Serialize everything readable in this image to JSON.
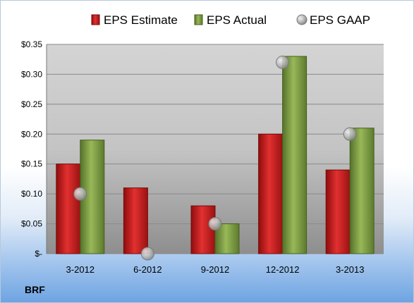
{
  "ticker": "BRF",
  "chart_data": {
    "type": "bar",
    "categories": [
      "3-2012",
      "6-2012",
      "9-2012",
      "12-2012",
      "3-2013"
    ],
    "series": [
      {
        "name": "EPS Estimate",
        "kind": "bar",
        "color": "#cc1f1f",
        "values": [
          0.15,
          0.11,
          0.08,
          0.2,
          0.14
        ]
      },
      {
        "name": "EPS Actual",
        "kind": "bar",
        "color": "#7a9a3a",
        "values": [
          0.19,
          null,
          0.05,
          0.33,
          0.21
        ]
      },
      {
        "name": "EPS GAAP",
        "kind": "marker",
        "color": "#b0b0b0",
        "values": [
          0.1,
          0.0,
          0.05,
          0.32,
          0.2
        ]
      }
    ],
    "ylim": [
      0,
      0.35
    ],
    "yticks": [
      0,
      0.05,
      0.1,
      0.15,
      0.2,
      0.25,
      0.3,
      0.35
    ],
    "ytick_labels": [
      "$-",
      "$0.05",
      "$0.10",
      "$0.15",
      "$0.20",
      "$0.25",
      "$0.30",
      "$0.35"
    ],
    "grid": true,
    "legend": "top"
  }
}
